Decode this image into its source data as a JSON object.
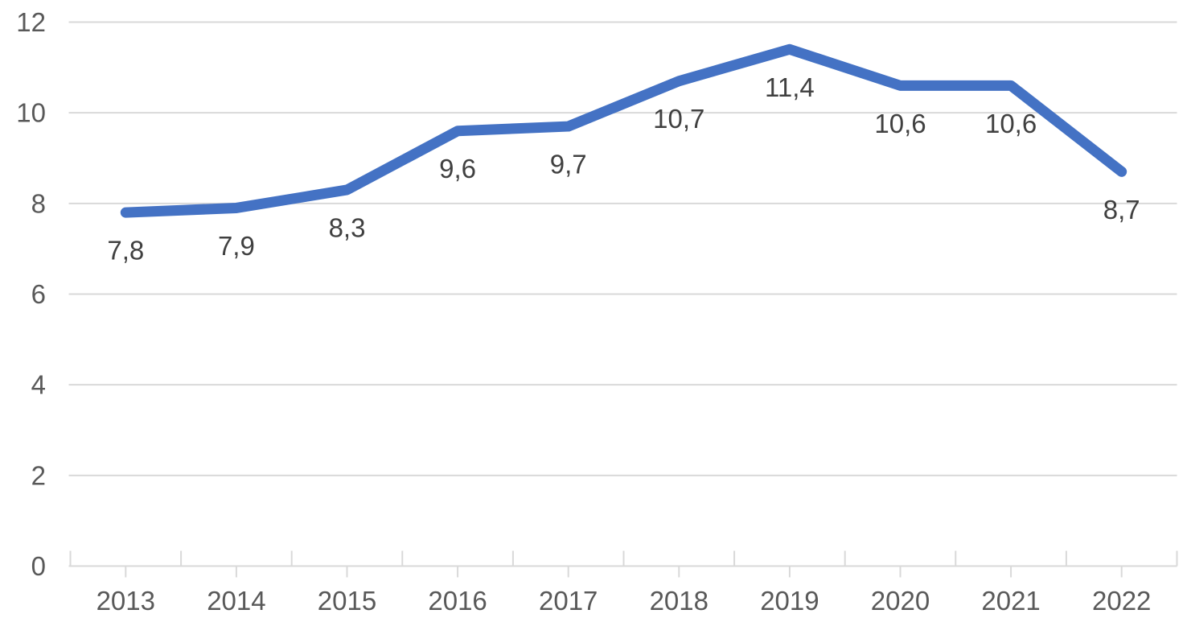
{
  "chart_data": {
    "type": "line",
    "title": "",
    "categories": [
      "2013",
      "2014",
      "2015",
      "2016",
      "2017",
      "2018",
      "2019",
      "2020",
      "2021",
      "2022"
    ],
    "series": [
      {
        "values": [
          7.8,
          7.9,
          8.3,
          9.6,
          9.7,
          10.7,
          11.4,
          10.6,
          10.6,
          8.7
        ],
        "color": "#4472C4"
      }
    ],
    "data_labels": [
      "7,8",
      "7,9",
      "8,3",
      "9,6",
      "9,7",
      "10,7",
      "11,4",
      "10,6",
      "10,6",
      "8,7"
    ],
    "data_label_position": "below",
    "xlabel": "",
    "ylabel": "",
    "ylim": [
      0,
      12
    ],
    "y_ticks": [
      0,
      2,
      4,
      6,
      8,
      10,
      12
    ],
    "y_tick_labels": [
      "0",
      "2",
      "4",
      "6",
      "8",
      "10",
      "12"
    ],
    "grid": "horizontal",
    "legend": "none",
    "colors": {
      "line": "#4472C4",
      "gridline": "#D9D9D9",
      "axis_line": "#D9D9D9",
      "axis_text": "#595959",
      "data_label_text": "#404040",
      "background": "#FFFFFF"
    }
  }
}
